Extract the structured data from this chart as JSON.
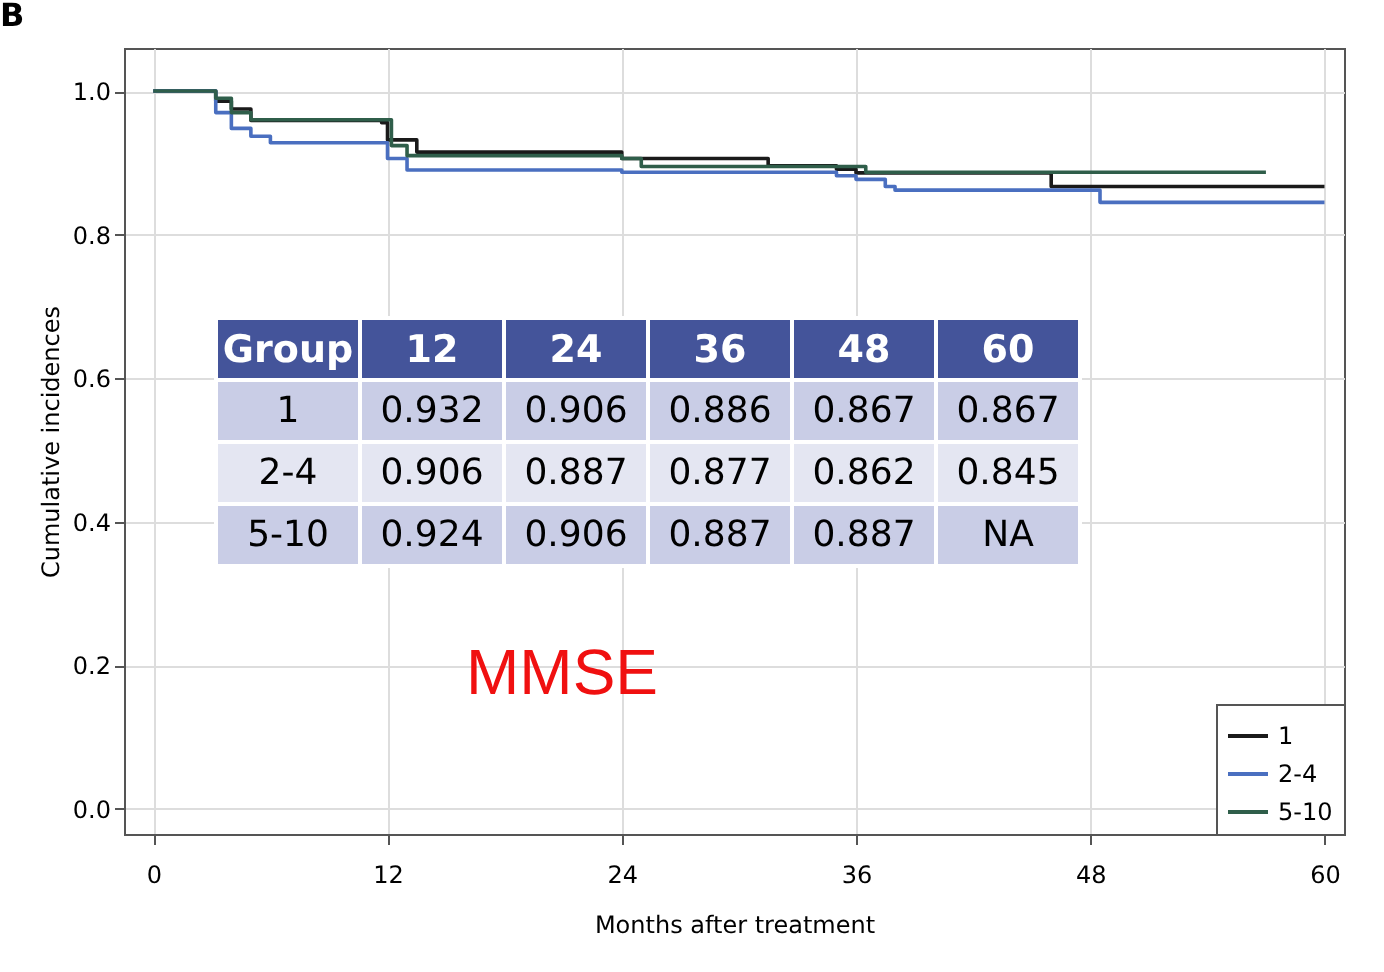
{
  "chart_data": {
    "type": "step",
    "title": "B",
    "xlabel": "Months after treatment",
    "ylabel": "Cumulative incidences",
    "xlim": [
      -1.5,
      61
    ],
    "xticks": [
      0,
      12,
      24,
      36,
      48,
      60
    ],
    "ylim": [
      -0.035,
      1.06
    ],
    "yticks": [
      {
        "value": 0,
        "label": "0.0"
      },
      {
        "value": 0.2,
        "label": "0.2"
      },
      {
        "value": 0.4,
        "label": "0.4"
      },
      {
        "value": 0.6,
        "label": "0.6"
      },
      {
        "value": 0.8,
        "label": "0.8"
      },
      {
        "value": 1,
        "label": "1.0"
      }
    ],
    "grid": true,
    "legend": "bottom right",
    "line_style": "solid",
    "marker": "none",
    "series": [
      {
        "name": "1",
        "color": "#1a1a1a",
        "x": [
          0,
          3,
          3.2,
          4,
          5,
          11.7,
          12,
          13.5,
          23.2,
          24,
          31.5,
          35,
          36,
          46,
          60
        ],
        "values": [
          1,
          1,
          0.986,
          0.975,
          0.959,
          0.956,
          0.932,
          0.915,
          0.915,
          0.906,
          0.896,
          0.891,
          0.886,
          0.867,
          0.867
        ]
      },
      {
        "name": "2-4",
        "color": "#4a6fc0",
        "x": [
          0,
          3,
          3.2,
          4,
          5,
          6,
          11.3,
          12,
          13,
          24,
          35,
          36,
          37.5,
          38,
          48.5,
          60
        ],
        "values": [
          1,
          1,
          0.97,
          0.948,
          0.937,
          0.928,
          0.928,
          0.906,
          0.89,
          0.887,
          0.882,
          0.877,
          0.867,
          0.862,
          0.845,
          0.845
        ]
      },
      {
        "name": "5-10",
        "color": "#2f5e4a",
        "x": [
          0,
          3,
          3.2,
          4,
          5,
          11.8,
          12.2,
          13,
          24,
          25,
          36.5,
          57
        ],
        "values": [
          1,
          1,
          0.99,
          0.97,
          0.96,
          0.96,
          0.924,
          0.91,
          0.906,
          0.895,
          0.887,
          0.887
        ]
      }
    ],
    "annotations": [
      "MMSE",
      "Group",
      "12",
      "24",
      "36",
      "48",
      "60",
      "1",
      "0.932",
      "0.906",
      "0.886",
      "0.867",
      "0.867",
      "2-4",
      "0.906",
      "0.887",
      "0.877",
      "0.862",
      "0.845",
      "5-10",
      "0.924",
      "0.906",
      "0.887",
      "0.887",
      "NA"
    ]
  }
}
